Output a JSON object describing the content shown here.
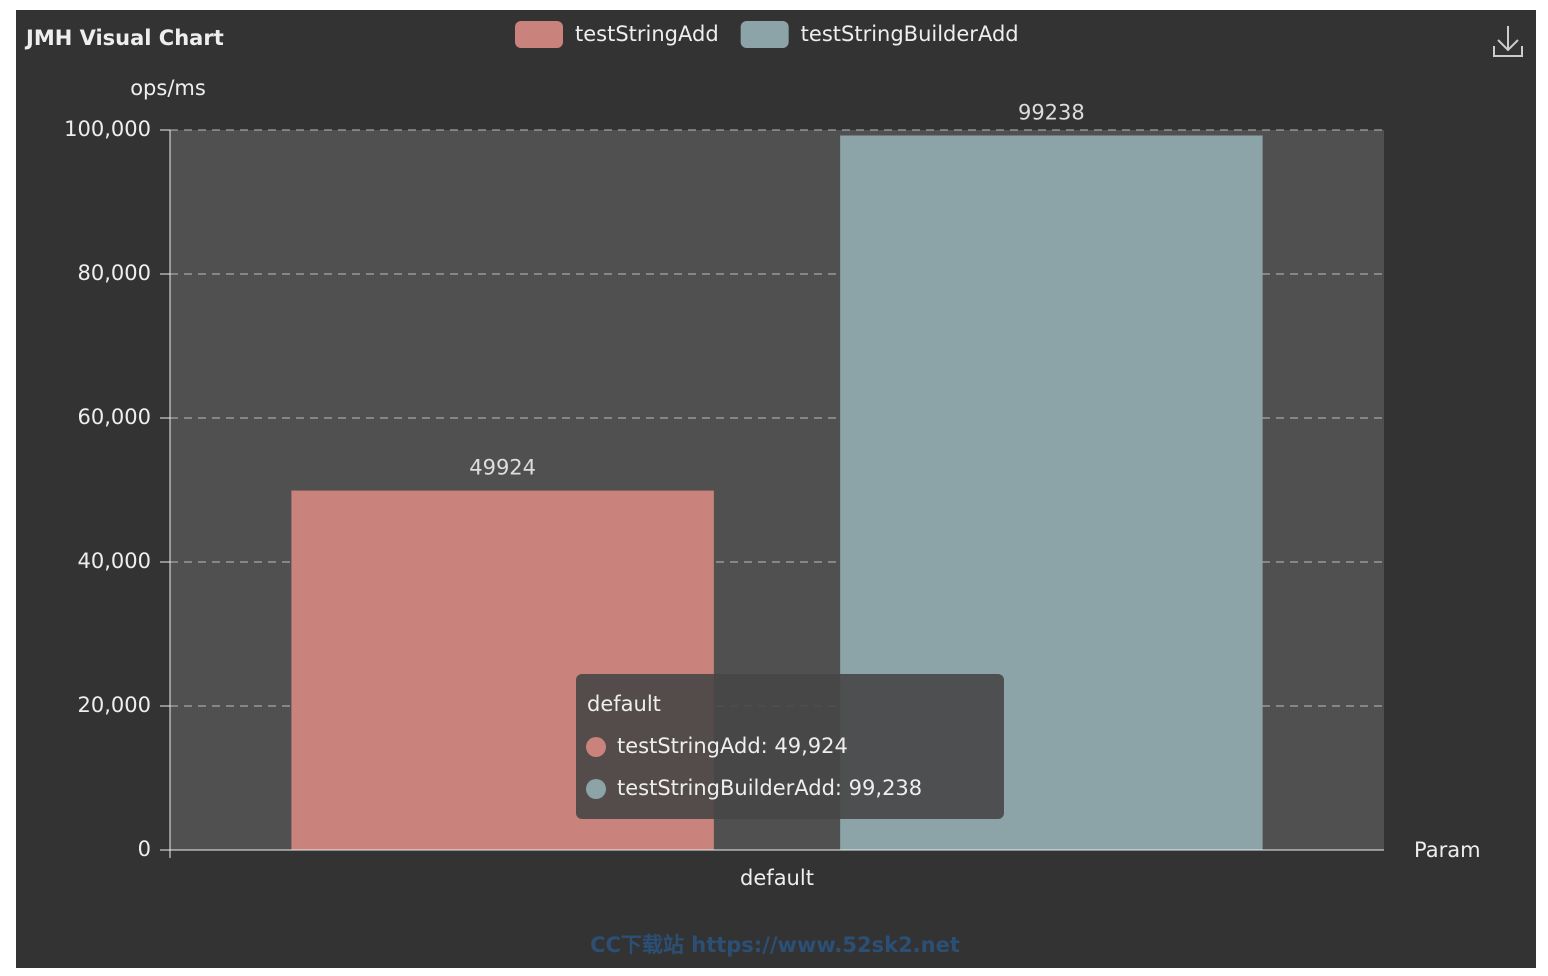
{
  "chart_data": {
    "type": "bar",
    "title": "JMH Visual Chart",
    "y_label": "ops/ms",
    "x_label": "Param",
    "categories": [
      "default"
    ],
    "series": [
      {
        "name": "testStringAdd",
        "color": "#c9827c",
        "values": [
          49924
        ]
      },
      {
        "name": "testStringBuilderAdd",
        "color": "#8ca3a8",
        "values": [
          99238
        ]
      }
    ],
    "ylim": [
      0,
      100000
    ],
    "yticks": [
      0,
      {
        "value": 20000,
        "label": "20,000"
      },
      {
        "value": 40000,
        "label": "40,000"
      },
      {
        "value": 60000,
        "label": "60,000"
      },
      {
        "value": 80000,
        "label": "80,000"
      },
      {
        "value": 100000,
        "label": "100,000"
      }
    ],
    "grid": true,
    "tooltip": [
      "testStringAdd: 49,924",
      "testStringBuilderAdd: 99,238"
    ],
    "watermark": "CC下载站 https://www.52sk2.net"
  }
}
